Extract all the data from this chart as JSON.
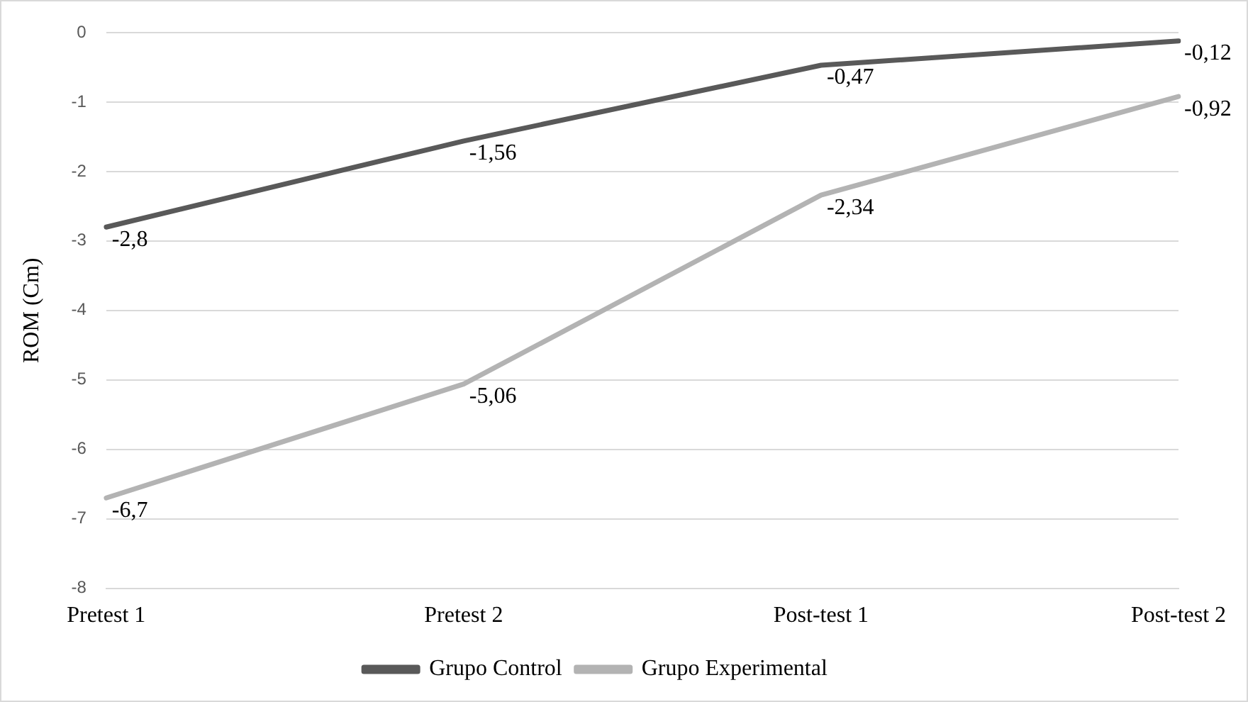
{
  "chart_data": {
    "type": "line",
    "ylabel": "ROM (Cm)",
    "categories": [
      "Pretest 1",
      "Pretest 2",
      "Post-test 1",
      "Post-test 2"
    ],
    "series": [
      {
        "name": "Grupo Control",
        "color": "#595959",
        "values": [
          -2.8,
          -1.56,
          -0.47,
          -0.12
        ],
        "value_labels": [
          "-2,8",
          "-1,56",
          "-0,47",
          "-0,12"
        ]
      },
      {
        "name": "Grupo Experimental",
        "color": "#b3b3b3",
        "values": [
          -6.7,
          -5.06,
          -2.34,
          -0.92
        ],
        "value_labels": [
          "-6,7",
          "-5,06",
          "-2,34",
          "-0,92"
        ]
      }
    ],
    "ylim": [
      -8,
      0
    ],
    "yticks": [
      -8,
      -7,
      -6,
      -5,
      -4,
      -3,
      -2,
      -1,
      0
    ],
    "grid": "y",
    "legend": "bottom",
    "marker": "none",
    "line_style": "solid"
  }
}
